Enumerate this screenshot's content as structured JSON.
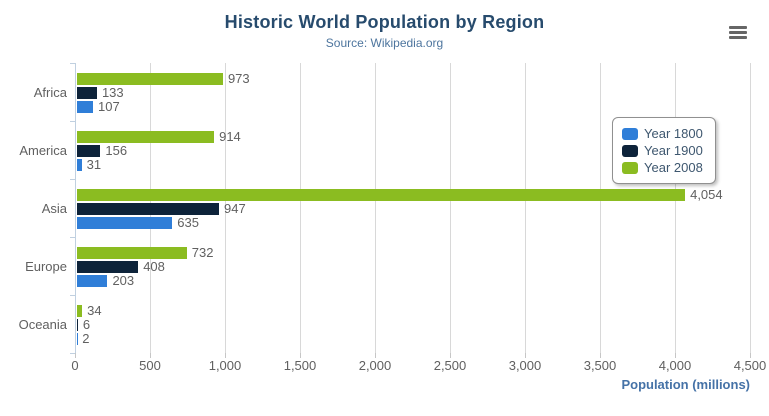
{
  "chart_data": {
    "type": "bar",
    "title": "Historic World Population by Region",
    "subtitle": "Source: Wikipedia.org",
    "xlabel": "Population (millions)",
    "categories": [
      "Africa",
      "America",
      "Asia",
      "Europe",
      "Oceania"
    ],
    "series": [
      {
        "name": "Year 1800",
        "color": "#2f7ed8",
        "values": [
          107,
          31,
          635,
          203,
          2
        ]
      },
      {
        "name": "Year 1900",
        "color": "#0d233a",
        "values": [
          133,
          156,
          947,
          408,
          6
        ]
      },
      {
        "name": "Year 2008",
        "color": "#8bbc21",
        "values": [
          973,
          914,
          4054,
          732,
          34
        ]
      }
    ],
    "xlim": [
      0,
      4500
    ],
    "xticks": [
      0,
      500,
      1000,
      1500,
      2000,
      2500,
      3000,
      3500,
      4000,
      4500
    ],
    "grid": "vertical",
    "legend_position": "inside-right",
    "bar_order_top_to_bottom": [
      "Year 2008",
      "Year 1900",
      "Year 1800"
    ]
  },
  "toolbar": {
    "export_menu_icon": "hamburger-icon"
  }
}
